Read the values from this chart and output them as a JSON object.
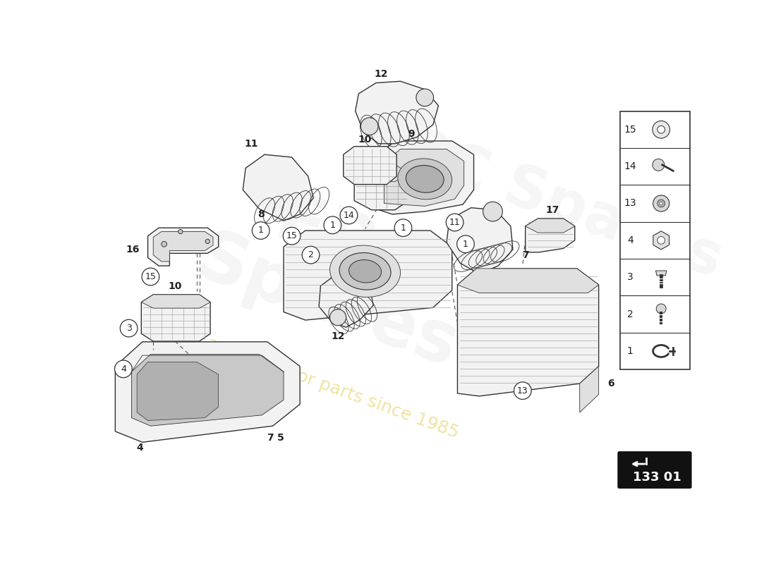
{
  "background_color": "#ffffff",
  "diagram_code": "133 01",
  "watermark_text": "EPC\nSpares",
  "watermark_slogan": "a passion for parts since 1985",
  "legend_items": [
    {
      "num": "15",
      "shape": "washer"
    },
    {
      "num": "14",
      "shape": "pin"
    },
    {
      "num": "13",
      "shape": "grommet"
    },
    {
      "num": "4",
      "shape": "nut"
    },
    {
      "num": "3",
      "shape": "bolt"
    },
    {
      "num": "2",
      "shape": "screw"
    },
    {
      "num": "1",
      "shape": "clamp"
    }
  ],
  "line_color": "#333333",
  "label_color": "#222222",
  "fill_light": "#f2f2f2",
  "fill_mid": "#e0e0e0",
  "fill_dark": "#c8c8c8",
  "fill_darker": "#b0b0b0"
}
